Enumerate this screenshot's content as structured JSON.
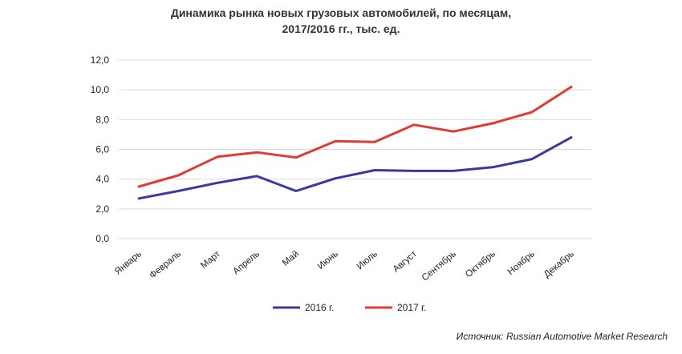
{
  "chart_data": {
    "type": "line",
    "title_line1": "Динамика рынка новых грузовых автомобилей, по месяцам,",
    "title_line2": "2017/2016 гг., тыс. ед.",
    "categories": [
      "Январь",
      "Февраль",
      "Март",
      "Апрель",
      "Май",
      "Июнь",
      "Июль",
      "Август",
      "Сентябрь",
      "Октябрь",
      "Ноябрь",
      "Декабрь"
    ],
    "y_ticks": [
      "0,0",
      "2,0",
      "4,0",
      "6,0",
      "8,0",
      "10,0",
      "12,0"
    ],
    "ylim": [
      0,
      12
    ],
    "grid": true,
    "legend_position": "bottom",
    "series": [
      {
        "name": "2016 г.",
        "color": "#3a3a9e",
        "values": [
          2.7,
          3.2,
          3.75,
          4.2,
          3.2,
          4.05,
          4.6,
          4.55,
          4.55,
          4.8,
          5.35,
          6.8
        ]
      },
      {
        "name": "2017 г.",
        "color": "#e03a32",
        "values": [
          3.5,
          4.25,
          5.5,
          5.8,
          5.45,
          6.55,
          6.5,
          7.65,
          7.2,
          7.75,
          8.5,
          10.2
        ]
      }
    ]
  },
  "source": "Источник: Russian Automotive Market Research"
}
